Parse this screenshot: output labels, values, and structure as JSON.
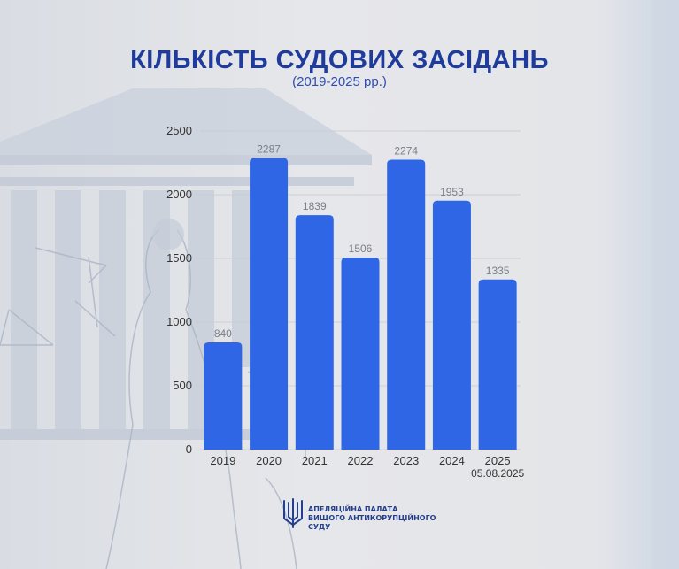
{
  "header": {
    "title": "КІЛЬКІСТЬ СУДОВИХ ЗАСІДАНЬ",
    "subtitle": "(2019-2025 рр.)"
  },
  "chart_data": {
    "type": "bar",
    "categories": [
      "2019",
      "2020",
      "2021",
      "2022",
      "2023",
      "2024",
      "2025"
    ],
    "category_sublabels": [
      "",
      "",
      "",
      "",
      "",
      "",
      "05.08.2025"
    ],
    "values": [
      840,
      2287,
      1839,
      1506,
      2274,
      1953,
      1335
    ],
    "yticks": [
      0,
      500,
      1000,
      1500,
      2000,
      2500
    ],
    "ylim": [
      0,
      2500
    ],
    "grid": true,
    "bar_color": "#2f66e6",
    "title": "КІЛЬКІСТЬ СУДОВИХ ЗАСІДАНЬ",
    "subtitle": "(2019-2025 рр.)",
    "xlabel": "",
    "ylabel": ""
  },
  "footer": {
    "logo_icon": "trident-emblem",
    "org_line1": "АПЕЛЯЦІЙНА ПАЛАТА",
    "org_line2": "ВИЩОГО АНТИКОРУПЦІЙНОГО",
    "org_line3": "СУДУ"
  },
  "colors": {
    "title": "#1f3c9c",
    "bar": "#2f66e6",
    "axis_text": "#333333",
    "value_text": "#7a7f88"
  }
}
